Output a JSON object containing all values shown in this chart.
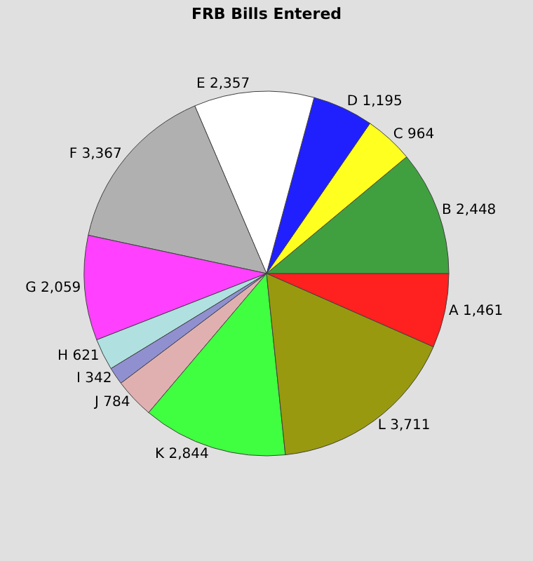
{
  "chart_data": {
    "type": "pie",
    "title": "FRB Bills Entered",
    "categories": [
      "A",
      "B",
      "C",
      "D",
      "E",
      "F",
      "G",
      "H",
      "I",
      "J",
      "K",
      "L"
    ],
    "values": [
      1461,
      2448,
      964,
      1195,
      2357,
      3367,
      2059,
      621,
      342,
      784,
      2844,
      3711
    ],
    "value_labels": [
      "1,461",
      "2,448",
      "964",
      "1,195",
      "2,357",
      "3,367",
      "2,059",
      "621",
      "342",
      "784",
      "2,844",
      "3,711"
    ],
    "colors": [
      "#ff2020",
      "#40a040",
      "#ffff20",
      "#2020ff",
      "#ffffff",
      "#b0b0b0",
      "#ff40ff",
      "#b0e0e0",
      "#9090d0",
      "#e0b0b0",
      "#40ff40",
      "#999910"
    ],
    "legend": false
  }
}
